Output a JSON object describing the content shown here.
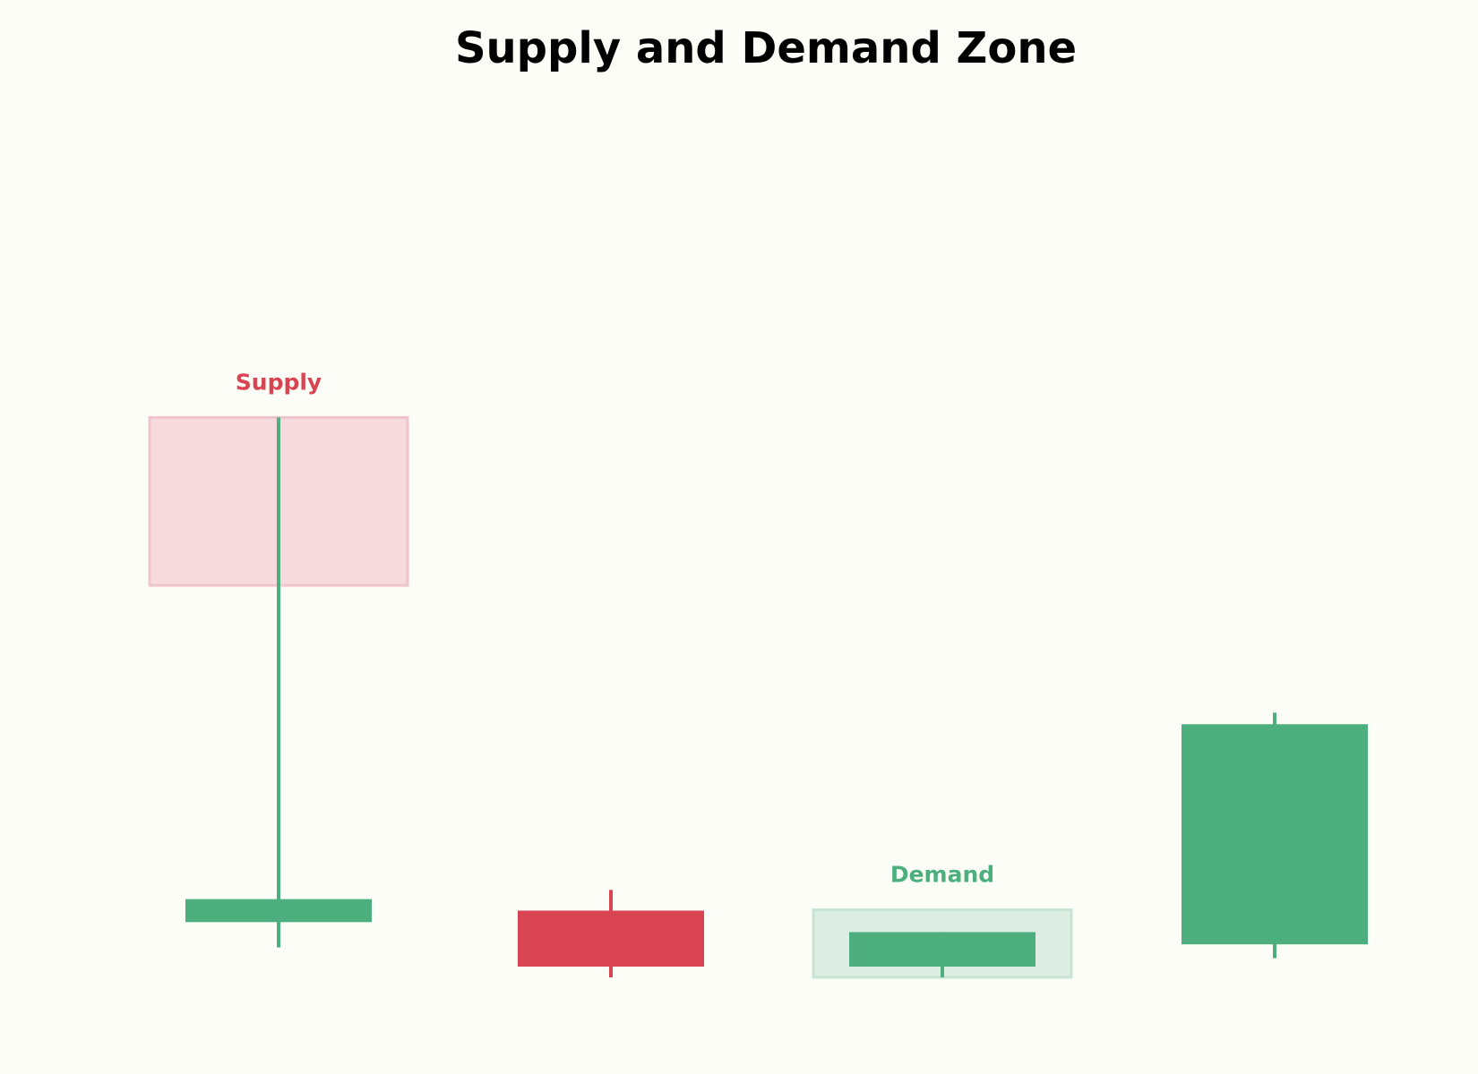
{
  "chart_data": {
    "type": "candlestick",
    "title": "Supply and Demand Zone",
    "xlabel": "",
    "ylabel": "",
    "axes_visible": false,
    "grid": false,
    "ylim": [
      0,
      100
    ],
    "colors": {
      "background": "#fdfdf8",
      "bullish": "#4caf7d",
      "bearish": "#d94452",
      "supply_zone_fill": "#f7dadd",
      "supply_zone_edge": "#efc4ca",
      "demand_zone_fill": "#ddefe4",
      "demand_zone_edge": "#c7e3d2",
      "supply_label": "#d94452",
      "demand_label": "#4caf7d"
    },
    "candles": [
      {
        "index": 0,
        "open": 14.2,
        "high": 80.0,
        "low": 10.9,
        "close": 17.2,
        "direction": "bullish"
      },
      {
        "index": 1,
        "open": 15.7,
        "high": 18.4,
        "low": 7.0,
        "close": 8.4,
        "direction": "bearish"
      },
      {
        "index": 2,
        "open": 8.4,
        "high": 12.9,
        "low": 7.0,
        "close": 12.9,
        "direction": "bullish"
      },
      {
        "index": 3,
        "open": 11.3,
        "high": 41.5,
        "low": 9.5,
        "close": 40.0,
        "direction": "bullish"
      }
    ],
    "zones": [
      {
        "label": "Supply",
        "candle_index": 0,
        "low": 58.1,
        "high": 80.0
      },
      {
        "label": "Demand",
        "candle_index": 2,
        "low": 7.0,
        "high": 15.8
      }
    ]
  }
}
